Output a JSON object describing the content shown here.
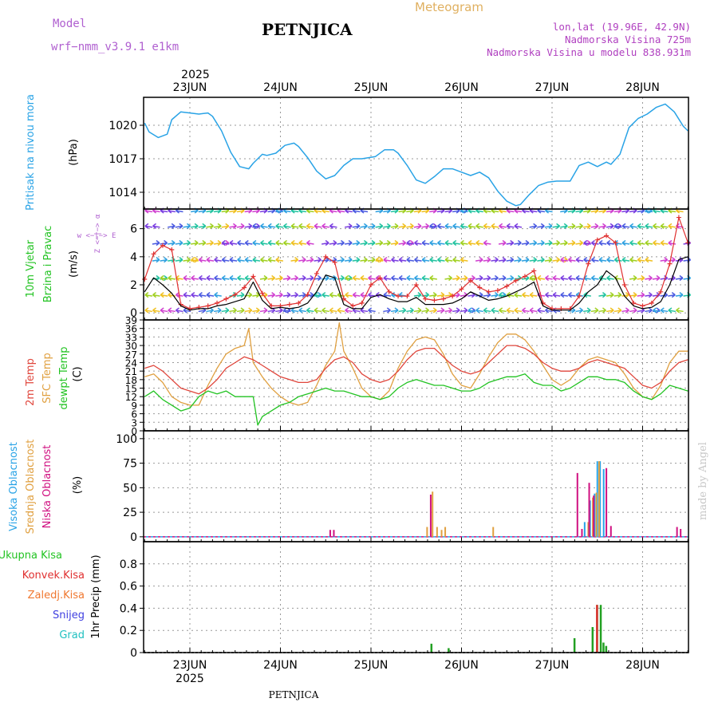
{
  "header": {
    "model_label": "Model",
    "model_name": "wrf−nmm_v3.9.1 e1km",
    "station_title": "PETNJICA",
    "meteogram_title": "Meteogram",
    "location": "lon,lat (19.96E, 42.9N)",
    "altitude": "Nadmorska Visina 725m",
    "model_altitude": "Nadmorska Visina u modelu 838.931m",
    "year_top": "2025",
    "year_bottom": "2025",
    "footer_station": "PETNJICA",
    "watermark": "made by Angel"
  },
  "colors": {
    "pressure": "#29a3e6",
    "temp2m": "#e0463c",
    "sfc_temp": "#e0a040",
    "dewpt": "#22c322",
    "wind_speed": "#000000",
    "wind_gust": "#e03030",
    "high_cloud": "#29a3e6",
    "mid_cloud": "#e0a040",
    "low_cloud": "#d01080",
    "total_precip": "#22a022",
    "conv_precip": "#e03030",
    "ice_precip": "#f07830",
    "snow": "#4040e0",
    "hail": "#20c0c0"
  },
  "chart_data": [
    {
      "type": "line",
      "panel": "pressure",
      "ylabel_rotated": "Pritisak na nivou mora",
      "unit": "(hPa)",
      "ylim": [
        1012.5,
        1022.5
      ],
      "yticks": [
        "1020",
        "1017",
        "1014"
      ],
      "ytick_values": [
        1020,
        1017,
        1014
      ],
      "x_days": [
        "23JUN",
        "24JUN",
        "25JUN",
        "26JUN",
        "27JUN",
        "28JUN"
      ],
      "x_range_days": [
        -0.5,
        5.5
      ],
      "grid": true,
      "series": [
        {
          "name": "",
          "x": [
            -0.5,
            -0.45,
            -0.35,
            -0.25,
            -0.2,
            -0.1,
            0,
            0.1,
            0.2,
            0.25,
            0.35,
            0.45,
            0.55,
            0.65,
            0.7,
            0.8,
            0.85,
            0.95,
            1.05,
            1.15,
            1.2,
            1.3,
            1.4,
            1.5,
            1.6,
            1.7,
            1.8,
            1.9,
            2.05,
            2.15,
            2.25,
            2.3,
            2.4,
            2.5,
            2.6,
            2.7,
            2.8,
            2.9,
            3.0,
            3.1,
            3.2,
            3.3,
            3.4,
            3.5,
            3.6,
            3.65,
            3.75,
            3.85,
            3.95,
            4.05,
            4.2,
            4.3,
            4.4,
            4.5,
            4.6,
            4.65,
            4.75,
            4.85,
            4.95,
            5.05,
            5.15,
            5.25,
            5.35,
            5.45,
            5.5
          ],
          "values": [
            1020.2,
            1019.4,
            1018.9,
            1019.2,
            1020.5,
            1021.2,
            1021.1,
            1021,
            1021.1,
            1020.8,
            1019.5,
            1017.6,
            1016.3,
            1016.1,
            1016.6,
            1017.4,
            1017.3,
            1017.5,
            1018.2,
            1018.4,
            1018.1,
            1017.1,
            1015.9,
            1015.2,
            1015.5,
            1016.4,
            1017.0,
            1017.0,
            1017.2,
            1017.8,
            1017.8,
            1017.5,
            1016.4,
            1015.1,
            1014.8,
            1015.4,
            1016.1,
            1016.1,
            1015.8,
            1015.5,
            1015.8,
            1015.3,
            1014.1,
            1013.2,
            1012.8,
            1012.9,
            1013.8,
            1014.6,
            1014.9,
            1015.0,
            1015.0,
            1016.4,
            1016.7,
            1016.3,
            1016.7,
            1016.5,
            1017.4,
            1019.8,
            1020.6,
            1021.0,
            1021.6,
            1021.9,
            1021.2,
            1019.9,
            1019.5
          ]
        }
      ]
    },
    {
      "type": "line",
      "panel": "wind",
      "ylabel_rotated_1": "10m Vjetar",
      "ylabel_rotated_2": "Brzina i Pravac",
      "unit": "(m/s)",
      "direction_legend": "w  <−|−>  E",
      "direction_legend_v": "Z <−|−> α",
      "ylim": [
        -0.5,
        7.4
      ],
      "yticks": [
        "6",
        "4",
        "2",
        "0"
      ],
      "ytick_values": [
        6,
        4,
        2,
        0
      ],
      "arrow_levels": [
        7.2,
        6.1,
        4.9,
        3.7,
        2.4,
        1.2,
        0.1
      ],
      "series": [
        {
          "name": "speed",
          "x": [
            -0.5,
            -0.4,
            -0.3,
            -0.2,
            -0.1,
            0.0,
            0.1,
            0.2,
            0.3,
            0.4,
            0.5,
            0.6,
            0.7,
            0.8,
            0.9,
            1.0,
            1.1,
            1.2,
            1.3,
            1.4,
            1.5,
            1.6,
            1.7,
            1.8,
            1.9,
            2.0,
            2.1,
            2.2,
            2.3,
            2.4,
            2.5,
            2.6,
            2.7,
            2.8,
            2.9,
            3.0,
            3.1,
            3.2,
            3.3,
            3.4,
            3.5,
            3.6,
            3.7,
            3.8,
            3.9,
            4.0,
            4.1,
            4.2,
            4.3,
            4.4,
            4.5,
            4.6,
            4.7,
            4.8,
            4.9,
            5.0,
            5.1,
            5.2,
            5.3,
            5.4,
            5.5
          ],
          "values": [
            1.5,
            2.5,
            2.0,
            1.4,
            0.5,
            0.2,
            0.3,
            0.3,
            0.5,
            0.6,
            0.8,
            1.0,
            2.2,
            0.9,
            0.3,
            0.4,
            0.3,
            0.4,
            0.7,
            1.5,
            2.7,
            2.5,
            0.6,
            0.3,
            0.3,
            1.1,
            1.3,
            1.0,
            0.8,
            0.8,
            1.1,
            0.6,
            0.6,
            0.6,
            0.7,
            1.0,
            1.5,
            1.2,
            0.9,
            1.0,
            1.2,
            1.5,
            1.8,
            2.2,
            0.5,
            0.2,
            0.2,
            0.2,
            0.7,
            1.5,
            2.0,
            3.0,
            2.5,
            1.2,
            0.5,
            0.3,
            0.4,
            0.8,
            2.0,
            3.8,
            4.0
          ]
        },
        {
          "name": "gust",
          "x": [
            -0.5,
            -0.4,
            -0.3,
            -0.2,
            -0.1,
            0.0,
            0.1,
            0.2,
            0.3,
            0.4,
            0.5,
            0.6,
            0.7,
            0.8,
            0.9,
            1.0,
            1.1,
            1.2,
            1.3,
            1.4,
            1.5,
            1.6,
            1.7,
            1.8,
            1.9,
            2.0,
            2.1,
            2.2,
            2.3,
            2.4,
            2.5,
            2.6,
            2.7,
            2.8,
            2.9,
            3.0,
            3.1,
            3.2,
            3.3,
            3.4,
            3.5,
            3.6,
            3.7,
            3.8,
            3.9,
            4.0,
            4.1,
            4.2,
            4.3,
            4.4,
            4.5,
            4.6,
            4.7,
            4.8,
            4.9,
            5.0,
            5.1,
            5.2,
            5.3,
            5.4,
            5.5
          ],
          "values": [
            2.4,
            4.2,
            4.8,
            4.5,
            0.6,
            0.3,
            0.4,
            0.5,
            0.7,
            1.0,
            1.3,
            1.8,
            2.6,
            1.4,
            0.5,
            0.5,
            0.6,
            0.7,
            1.3,
            2.8,
            4.0,
            3.6,
            1.0,
            0.5,
            0.7,
            2.0,
            2.5,
            1.5,
            1.2,
            1.2,
            2.0,
            1.0,
            0.9,
            1.0,
            1.2,
            1.7,
            2.3,
            1.8,
            1.5,
            1.6,
            1.9,
            2.3,
            2.6,
            3.0,
            0.7,
            0.3,
            0.3,
            0.3,
            1.2,
            3.5,
            5.2,
            5.5,
            5.0,
            2.0,
            0.7,
            0.5,
            0.7,
            1.5,
            3.5,
            6.8,
            5.0
          ]
        }
      ]
    },
    {
      "type": "line",
      "panel": "temperature",
      "ylabel_rotated_1": "2m Temp",
      "ylabel_rotated_2": "SFC Temp",
      "ylabel_rotated_3": "dewpt Temp",
      "unit": "(C)",
      "ylim": [
        0,
        39
      ],
      "yticks": [
        "39",
        "36",
        "33",
        "30",
        "27",
        "24",
        "21",
        "18",
        "15",
        "12",
        "9",
        "6",
        "3",
        "0"
      ],
      "ytick_values": [
        39,
        36,
        33,
        30,
        27,
        24,
        21,
        18,
        15,
        12,
        9,
        6,
        3,
        0
      ],
      "series": [
        {
          "name": "2m Temp",
          "x": [
            -0.5,
            -0.4,
            -0.3,
            -0.2,
            -0.1,
            0.0,
            0.1,
            0.2,
            0.3,
            0.4,
            0.5,
            0.6,
            0.7,
            0.8,
            0.9,
            1.0,
            1.1,
            1.2,
            1.3,
            1.4,
            1.5,
            1.6,
            1.7,
            1.8,
            1.9,
            2.0,
            2.1,
            2.2,
            2.3,
            2.4,
            2.5,
            2.6,
            2.7,
            2.8,
            2.9,
            3.0,
            3.1,
            3.2,
            3.3,
            3.4,
            3.5,
            3.6,
            3.7,
            3.8,
            3.9,
            4.0,
            4.1,
            4.2,
            4.3,
            4.4,
            4.5,
            4.6,
            4.7,
            4.8,
            4.9,
            5.0,
            5.1,
            5.2,
            5.3,
            5.4,
            5.5
          ],
          "values": [
            22,
            23,
            21,
            18,
            15,
            14,
            13,
            15,
            18,
            22,
            24,
            26,
            25,
            23,
            21,
            19,
            18,
            17,
            17,
            18,
            22,
            25,
            26,
            24,
            20,
            18,
            17,
            18,
            21,
            25,
            28,
            29,
            29,
            26,
            23,
            21,
            20,
            21,
            24,
            27,
            30,
            30,
            29,
            27,
            24,
            22,
            21,
            21,
            22,
            24,
            25,
            24,
            23,
            22,
            19,
            16,
            15,
            17,
            21,
            24,
            25
          ]
        },
        {
          "name": "SFC Temp",
          "x": [
            -0.5,
            -0.4,
            -0.3,
            -0.2,
            -0.1,
            0.0,
            0.1,
            0.2,
            0.3,
            0.4,
            0.5,
            0.6,
            0.65,
            0.7,
            0.8,
            0.9,
            1.0,
            1.1,
            1.2,
            1.3,
            1.4,
            1.5,
            1.6,
            1.65,
            1.7,
            1.8,
            1.9,
            2.0,
            2.1,
            2.2,
            2.3,
            2.4,
            2.5,
            2.6,
            2.7,
            2.8,
            2.9,
            3.0,
            3.1,
            3.2,
            3.3,
            3.4,
            3.5,
            3.6,
            3.7,
            3.8,
            3.9,
            4.0,
            4.1,
            4.2,
            4.3,
            4.4,
            4.5,
            4.6,
            4.7,
            4.8,
            4.9,
            5.0,
            5.1,
            5.2,
            5.3,
            5.4,
            5.5
          ],
          "values": [
            19,
            20,
            17,
            12,
            10,
            9,
            9,
            16,
            22,
            27,
            29,
            30,
            36,
            24,
            19,
            15,
            12,
            10,
            9,
            10,
            16,
            23,
            28,
            38,
            28,
            22,
            15,
            12,
            11,
            14,
            22,
            28,
            32,
            33,
            32,
            27,
            20,
            16,
            15,
            20,
            26,
            31,
            34,
            34,
            32,
            28,
            23,
            18,
            16,
            18,
            22,
            25,
            26,
            25,
            24,
            20,
            15,
            12,
            11,
            16,
            24,
            28,
            28
          ]
        },
        {
          "name": "dewpt Temp",
          "x": [
            -0.5,
            -0.4,
            -0.3,
            -0.2,
            -0.1,
            0.0,
            0.1,
            0.2,
            0.3,
            0.4,
            0.5,
            0.6,
            0.7,
            0.75,
            0.8,
            0.9,
            1.0,
            1.1,
            1.2,
            1.3,
            1.4,
            1.5,
            1.6,
            1.7,
            1.8,
            1.9,
            2.0,
            2.1,
            2.2,
            2.3,
            2.4,
            2.5,
            2.6,
            2.7,
            2.8,
            2.9,
            3.0,
            3.1,
            3.2,
            3.3,
            3.4,
            3.5,
            3.6,
            3.7,
            3.8,
            3.9,
            4.0,
            4.1,
            4.2,
            4.3,
            4.4,
            4.5,
            4.6,
            4.7,
            4.8,
            4.9,
            5.0,
            5.1,
            5.2,
            5.3,
            5.4,
            5.5
          ],
          "values": [
            12,
            14,
            11,
            9,
            7,
            8,
            12,
            14,
            13,
            14,
            12,
            12,
            12,
            2,
            5,
            7,
            9,
            10,
            12,
            13,
            14,
            15,
            14,
            14,
            13,
            12,
            12,
            11,
            12,
            15,
            17,
            18,
            17,
            16,
            16,
            15,
            14,
            14,
            15,
            17,
            18,
            19,
            19,
            20,
            17,
            16,
            16,
            14,
            15,
            17,
            19,
            19,
            18,
            18,
            17,
            14,
            12,
            11,
            13,
            16,
            15,
            14
          ]
        }
      ]
    },
    {
      "type": "bar",
      "panel": "cloud",
      "ylabel_rotated_1": "Visoka Oblacnost",
      "ylabel_rotated_2": "Srednja Oblacnost",
      "ylabel_rotated_3": "Niska Oblacnost",
      "unit": "(%)",
      "ylim": [
        -5,
        108
      ],
      "yticks": [
        "100",
        "75",
        "50",
        "25",
        "0"
      ],
      "ytick_values": [
        100,
        75,
        50,
        25,
        0
      ],
      "series": [
        {
          "name": "Visoka Oblacnost",
          "x": [
            4.36,
            4.42,
            4.47,
            4.5,
            4.53,
            4.57
          ],
          "values": [
            15,
            37,
            44,
            77,
            77,
            69
          ]
        },
        {
          "name": "Srednja Oblacnost",
          "x": [
            2.62,
            2.68,
            2.73,
            2.78,
            2.82,
            3.35,
            4.4,
            4.45,
            4.49,
            4.52
          ],
          "values": [
            10,
            46,
            10,
            7,
            10,
            10,
            15,
            40,
            45,
            77
          ]
        },
        {
          "name": "Niska Oblacnost",
          "x": [
            1.55,
            1.59,
            2.66,
            4.28,
            4.33,
            4.41,
            4.46,
            4.6,
            4.65,
            5.38,
            5.42
          ],
          "values": [
            7,
            7,
            43,
            65,
            8,
            55,
            42,
            70,
            11,
            10,
            8
          ]
        }
      ]
    },
    {
      "type": "bar",
      "panel": "precipitation",
      "ylabel_rotated": "1hr Precip (mm)",
      "legend": [
        "Ukupna Kisa",
        "Konvek.Kisa",
        "Zaledj.Kisa",
        "Snijeg",
        "Grad"
      ],
      "ylim": [
        0,
        1.0
      ],
      "yticks": [
        "0.8",
        "0.6",
        "0.4",
        "0.2",
        "0"
      ],
      "ytick_values": [
        0.8,
        0.6,
        0.4,
        0.2,
        0
      ],
      "series": [
        {
          "name": "Ukupna Kisa",
          "x": [
            2.67,
            2.86,
            4.25,
            4.45,
            4.5,
            4.54,
            4.57,
            4.6
          ],
          "values": [
            0.08,
            0.04,
            0.13,
            0.23,
            0.43,
            0.43,
            0.09,
            0.06
          ]
        },
        {
          "name": "Konvek.Kisa",
          "x": [
            4.49
          ],
          "values": [
            0.43
          ]
        }
      ]
    }
  ]
}
